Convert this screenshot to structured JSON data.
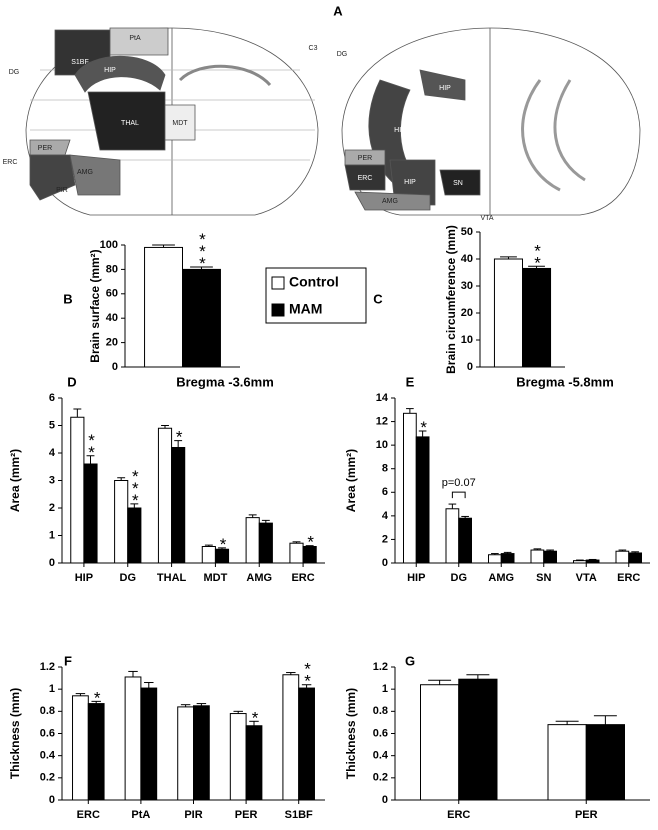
{
  "figure_label": "A",
  "diagram": {
    "labels": [
      "PtA",
      "S1BF",
      "DG",
      "HIP",
      "C3",
      "THAL",
      "MDT",
      "ERC",
      "PER",
      "AMG",
      "PIR",
      "DG",
      "HIP",
      "PER",
      "ERC",
      "HIP",
      "SN",
      "AMG",
      "VTA",
      "HIP"
    ]
  },
  "chart_data": [
    {
      "type": "bar",
      "panel": "B",
      "ylabel": "Brain surface (mm²)",
      "ylim": [
        0,
        100
      ],
      "yticks": [
        0,
        20,
        40,
        60,
        80,
        100
      ],
      "series": [
        {
          "name": "Control",
          "color": "#ffffff",
          "values": [
            98
          ],
          "errors": [
            2
          ]
        },
        {
          "name": "MAM",
          "color": "#000000",
          "values": [
            80
          ],
          "errors": [
            2
          ]
        }
      ],
      "annotations": [
        {
          "index": 0,
          "text": "***"
        }
      ]
    },
    {
      "type": "bar",
      "panel": "C",
      "ylabel": "Brain circumference (mm)",
      "ylim": [
        0,
        50
      ],
      "yticks": [
        0,
        10,
        20,
        30,
        40,
        50
      ],
      "series": [
        {
          "name": "Control",
          "color": "#ffffff",
          "values": [
            40
          ],
          "errors": [
            0.8
          ]
        },
        {
          "name": "MAM",
          "color": "#000000",
          "values": [
            36.5
          ],
          "errors": [
            0.8
          ]
        }
      ],
      "annotations": [
        {
          "index": 0,
          "text": "**"
        }
      ]
    },
    {
      "type": "bar",
      "panel": "D",
      "title": "Bregma -3.6mm",
      "ylabel": "Area (mm²)",
      "ylim": [
        0,
        6
      ],
      "yticks": [
        0,
        1,
        2,
        3,
        4,
        5,
        6
      ],
      "categories": [
        "HIP",
        "DG",
        "THAL",
        "MDT",
        "AMG",
        "ERC"
      ],
      "series": [
        {
          "name": "Control",
          "color": "#ffffff",
          "values": [
            5.3,
            3.0,
            4.9,
            0.6,
            1.65,
            0.72
          ],
          "errors": [
            0.3,
            0.1,
            0.1,
            0.05,
            0.1,
            0.05
          ]
        },
        {
          "name": "MAM",
          "color": "#000000",
          "values": [
            3.6,
            2.0,
            4.2,
            0.5,
            1.45,
            0.6
          ],
          "errors": [
            0.3,
            0.15,
            0.25,
            0.05,
            0.1,
            0.03
          ]
        }
      ],
      "annotations": [
        {
          "index": 0,
          "text": "**"
        },
        {
          "index": 1,
          "text": "***"
        },
        {
          "index": 2,
          "text": "*"
        },
        {
          "index": 3,
          "text": "*"
        },
        {
          "index": 5,
          "text": "*"
        }
      ]
    },
    {
      "type": "bar",
      "panel": "E",
      "title": "Bregma -5.8mm",
      "ylabel": "Area (mm²)",
      "ylim": [
        0,
        14
      ],
      "yticks": [
        0,
        2,
        4,
        6,
        8,
        10,
        12,
        14
      ],
      "categories": [
        "HIP",
        "DG",
        "AMG",
        "SN",
        "VTA",
        "ERC"
      ],
      "series": [
        {
          "name": "Control",
          "color": "#ffffff",
          "values": [
            12.7,
            4.6,
            0.7,
            1.1,
            0.2,
            1.0
          ],
          "errors": [
            0.4,
            0.4,
            0.1,
            0.1,
            0.05,
            0.1
          ]
        },
        {
          "name": "MAM",
          "color": "#000000",
          "values": [
            10.7,
            3.8,
            0.8,
            1.0,
            0.25,
            0.85
          ],
          "errors": [
            0.5,
            0.15,
            0.1,
            0.1,
            0.05,
            0.1
          ]
        }
      ],
      "annotations": [
        {
          "index": 0,
          "text": "*"
        }
      ],
      "note": {
        "index": 1,
        "text": "p=0.07"
      }
    },
    {
      "type": "bar",
      "panel": "F",
      "ylabel": "Thickness (mm)",
      "ylim": [
        0,
        1.2
      ],
      "yticks": [
        0,
        0.2,
        0.4,
        0.6,
        0.8,
        1,
        1.2
      ],
      "categories": [
        "ERC",
        "PtA",
        "PIR",
        "PER",
        "S1BF"
      ],
      "series": [
        {
          "name": "Control",
          "color": "#ffffff",
          "values": [
            0.94,
            1.11,
            0.84,
            0.78,
            1.13
          ],
          "errors": [
            0.02,
            0.05,
            0.02,
            0.02,
            0.02
          ]
        },
        {
          "name": "MAM",
          "color": "#000000",
          "values": [
            0.87,
            1.01,
            0.85,
            0.67,
            1.01
          ],
          "errors": [
            0.02,
            0.05,
            0.02,
            0.04,
            0.03
          ]
        }
      ],
      "annotations": [
        {
          "index": 0,
          "text": "*"
        },
        {
          "index": 3,
          "text": "*"
        },
        {
          "index": 4,
          "text": "**"
        }
      ]
    },
    {
      "type": "bar",
      "panel": "G",
      "ylabel": "Thickness (mm)",
      "ylim": [
        0,
        1.2
      ],
      "yticks": [
        0,
        0.2,
        0.4,
        0.6,
        0.8,
        1,
        1.2
      ],
      "categories": [
        "ERC",
        "PER"
      ],
      "series": [
        {
          "name": "Control",
          "color": "#ffffff",
          "values": [
            1.04,
            0.68
          ],
          "errors": [
            0.04,
            0.03
          ]
        },
        {
          "name": "MAM",
          "color": "#000000",
          "values": [
            1.09,
            0.68
          ],
          "errors": [
            0.04,
            0.08
          ]
        }
      ]
    }
  ]
}
